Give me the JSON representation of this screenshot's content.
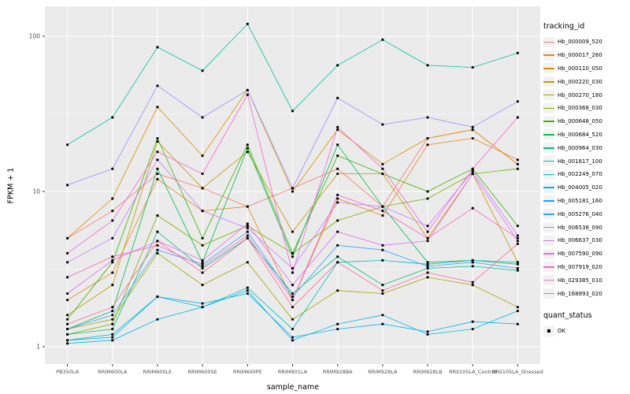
{
  "figure": {
    "bg": "#FFFFFF",
    "panel_bg": "#EBEBEB",
    "grid_major": "#FFFFFF",
    "grid_minor": "#FFFFFF",
    "tick_label_color": "#4D4D4D",
    "point_color": "#000000"
  },
  "chart_data": {
    "type": "line",
    "title": "",
    "xlabel": "sample_name",
    "ylabel": "FPKM + 1",
    "y_scale": "log10",
    "y_ticks": [
      1,
      10,
      100
    ],
    "y_minor_ticks": [
      3.162,
      31.62
    ],
    "ylim": [
      0.77,
      155
    ],
    "legend_title": "tracking_id",
    "legend_position": "right",
    "quant_status": {
      "title": "quant_status",
      "items": [
        {
          "label": "OK",
          "shape": "point"
        }
      ]
    },
    "categories": [
      "PB350LA",
      "RRIM600LA",
      "RRIM600LE",
      "RRIM600SE",
      "RRIM600PE",
      "RRIM901LA",
      "RRIM928BA",
      "RRIM928LA",
      "RRIM928LB",
      "RRII105LA_Control",
      "RRII105LA_Stressed"
    ],
    "series": [
      {
        "name": "Hb_000009_520",
        "color": "#F8766D",
        "values": [
          5,
          7.5,
          13,
          10.5,
          8,
          10.5,
          14,
          8,
          22,
          25,
          15
        ]
      },
      {
        "name": "Hb_000017_260",
        "color": "#E88526",
        "values": [
          2,
          3,
          12,
          7.5,
          8,
          2,
          9,
          7,
          20,
          22,
          16
        ]
      },
      {
        "name": "Hb_000110_050",
        "color": "#D89000",
        "values": [
          5,
          9,
          35,
          17,
          45,
          10,
          25,
          15,
          22,
          25,
          15
        ]
      },
      {
        "name": "Hb_000220_030",
        "color": "#C09B00",
        "values": [
          1.6,
          2.5,
          21,
          10.5,
          18,
          5.5,
          13,
          13,
          5,
          13,
          3.5
        ]
      },
      {
        "name": "Hb_000270_180",
        "color": "#A3A500",
        "values": [
          1.3,
          1.5,
          4,
          2.5,
          3.5,
          1.5,
          2.3,
          2.2,
          2.8,
          2.5,
          1.8
        ]
      },
      {
        "name": "Hb_000368_030",
        "color": "#7CAE00",
        "values": [
          1.2,
          1.4,
          7,
          4.5,
          6,
          4,
          6.5,
          8,
          9,
          13,
          14
        ]
      },
      {
        "name": "Hb_000648_050",
        "color": "#39B600",
        "values": [
          1.5,
          3.5,
          22,
          5,
          20,
          4,
          17,
          13,
          10,
          14,
          6
        ]
      },
      {
        "name": "Hb_000684_520",
        "color": "#00BB4E",
        "values": [
          1.3,
          1.7,
          14,
          3.5,
          19,
          3.8,
          20,
          8,
          3.5,
          3.6,
          3.4
        ]
      },
      {
        "name": "Hb_000964_030",
        "color": "#00BF7D",
        "values": [
          1.2,
          1.3,
          5.5,
          3.2,
          5,
          2.2,
          3.8,
          2.5,
          3.2,
          3.3,
          3.1
        ]
      },
      {
        "name": "Hb_001817_100",
        "color": "#00C1A3",
        "values": [
          20,
          30,
          85,
          60,
          120,
          33,
          65,
          95,
          65,
          63,
          78
        ]
      },
      {
        "name": "Hb_002249_070",
        "color": "#00BFC4",
        "values": [
          1.1,
          1.2,
          2.1,
          1.8,
          2.4,
          1.3,
          3.5,
          3.6,
          3.4,
          3.6,
          3.5
        ]
      },
      {
        "name": "Hb_004005_020",
        "color": "#00BAE0",
        "values": [
          1.05,
          1.1,
          1.5,
          1.8,
          2.3,
          1.1,
          1.4,
          1.6,
          1.2,
          1.3,
          1.7
        ]
      },
      {
        "name": "Hb_005181_160",
        "color": "#00B0F6",
        "values": [
          1.1,
          1.15,
          2.1,
          1.9,
          2.2,
          1.15,
          1.3,
          1.4,
          1.25,
          1.45,
          1.4
        ]
      },
      {
        "name": "Hb_005276_040",
        "color": "#35A2FF",
        "values": [
          1.3,
          1.6,
          4.2,
          3.4,
          5.5,
          2.1,
          4.5,
          4.2,
          3.3,
          3.5,
          3.2
        ]
      },
      {
        "name": "Hb_006538_090",
        "color": "#9590FF",
        "values": [
          11,
          14,
          48,
          30,
          45,
          10.5,
          40,
          27,
          30,
          26,
          38
        ]
      },
      {
        "name": "Hb_006637_030",
        "color": "#C77CFF",
        "values": [
          3.5,
          5,
          16,
          7.5,
          5.8,
          3.2,
          8.5,
          8,
          6,
          13.5,
          5.2
        ]
      },
      {
        "name": "Hb_007590_090",
        "color": "#E76BF3",
        "values": [
          2.2,
          3.6,
          4.8,
          3.6,
          6.2,
          2.5,
          5.5,
          4.5,
          4.8,
          13,
          4.8
        ]
      },
      {
        "name": "Hb_007919_020",
        "color": "#FA62DB",
        "values": [
          4,
          6.5,
          18,
          13,
          42,
          3,
          26,
          14,
          5.5,
          14,
          30
        ]
      },
      {
        "name": "Hb_029385_010",
        "color": "#FF62BC",
        "values": [
          2.8,
          3.8,
          4.5,
          3.3,
          5.2,
          2,
          9.5,
          7.5,
          5,
          7.8,
          5
        ]
      },
      {
        "name": "Hb_168893_020",
        "color": "#FF6A98",
        "values": [
          1.4,
          1.8,
          4.8,
          3,
          5,
          1.8,
          3.5,
          2.3,
          3,
          2.6,
          4.6
        ]
      }
    ]
  }
}
